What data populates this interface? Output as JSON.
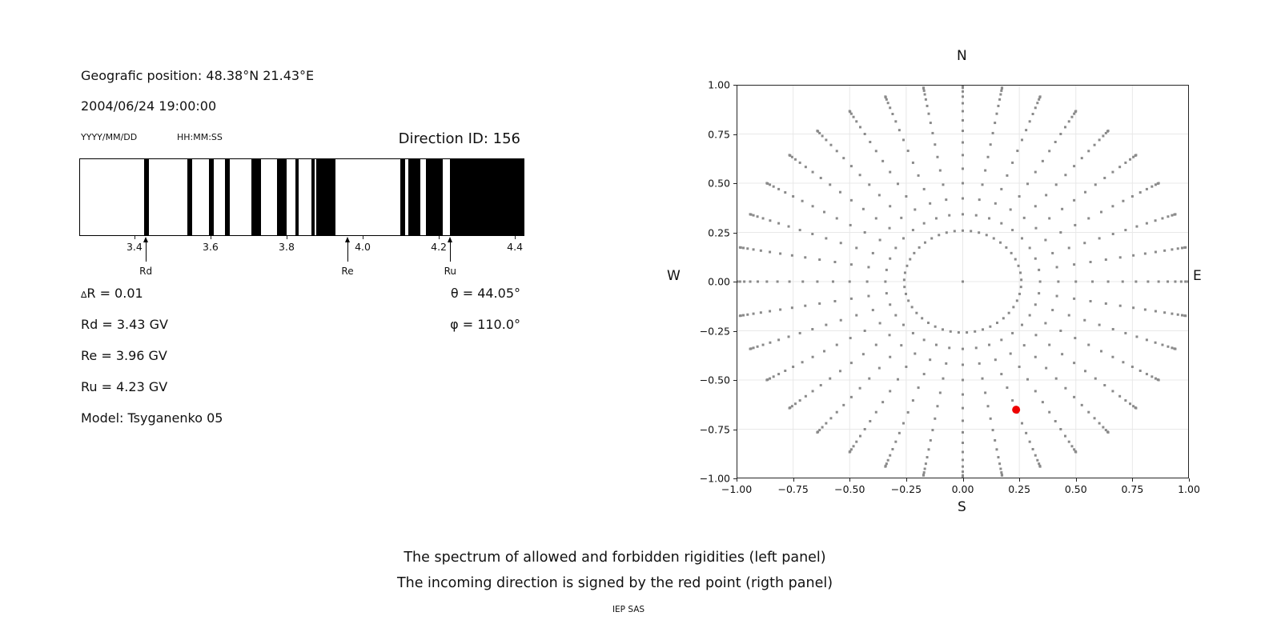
{
  "left_panel": {
    "geo_position": "Geografic position: 48.38°N 21.43°E",
    "datetime": "2004/06/24 19:00:00",
    "date_format_hint": "YYYY/MM/DD",
    "time_format_hint": "HH:MM:SS",
    "direction_id": "Direction ID: 156",
    "params": {
      "delta_r": "∆R = 0.01",
      "rd": "Rd = 3.43 GV",
      "re": "Re = 3.96 GV",
      "ru": "Ru = 4.23 GV",
      "model": "Model: Tsyganenko 05",
      "theta": "θ = 44.05°",
      "phi": "φ = 110.0°"
    }
  },
  "caption": {
    "line1": "The spectrum of allowed and forbidden rigidities (left panel)",
    "line2": "The incoming direction is signed by the red point (rigth panel)",
    "footer": "IEP SAS"
  },
  "chart_data": [
    {
      "type": "barcode-spectrum",
      "description": "Allowed (white) and forbidden (black) rigidity bands in GV",
      "xlim": [
        3.255,
        4.425
      ],
      "xticks": [
        3.4,
        3.6,
        3.8,
        4.0,
        4.2,
        4.4
      ],
      "xtick_labels": [
        "3.4",
        "3.6",
        "3.8",
        "4.0",
        "4.2",
        "4.4"
      ],
      "forbidden_bands_gv": [
        [
          3.425,
          3.437
        ],
        [
          3.537,
          3.551
        ],
        [
          3.595,
          3.608
        ],
        [
          3.638,
          3.651
        ],
        [
          3.707,
          3.733
        ],
        [
          3.774,
          3.8
        ],
        [
          3.823,
          3.832
        ],
        [
          3.865,
          3.873
        ],
        [
          3.877,
          3.929
        ],
        [
          4.1,
          4.113
        ],
        [
          4.121,
          4.153
        ],
        [
          4.167,
          4.212
        ],
        [
          4.231,
          4.425
        ]
      ],
      "markers": [
        {
          "label": "Rd",
          "value_gv": 3.43
        },
        {
          "label": "Re",
          "value_gv": 3.96
        },
        {
          "label": "Ru",
          "value_gv": 4.23
        }
      ],
      "band_color": "#000000"
    },
    {
      "type": "scatter",
      "compass": {
        "top": "N",
        "bottom": "S",
        "left": "W",
        "right": "E"
      },
      "xlim": [
        -1,
        1
      ],
      "ylim": [
        -1,
        1
      ],
      "ticks": [
        -1,
        -0.75,
        -0.5,
        -0.25,
        0,
        0.25,
        0.5,
        0.75,
        1
      ],
      "tick_labels": [
        "−1.00",
        "−0.75",
        "−0.50",
        "−0.25",
        "0.00",
        "0.25",
        "0.50",
        "0.75",
        "1.00"
      ],
      "grid": true,
      "direction_grid": {
        "center_point": [
          0,
          0
        ],
        "inner_ring": {
          "radius": 0.259,
          "points": 45
        },
        "spokes": {
          "count": 36,
          "azimuth_step_deg": 10,
          "zenith_from_deg": 20,
          "zenith_to_deg": 90,
          "zenith_step_deg": 5,
          "radius_rule": "sin(zenith)"
        }
      },
      "red_point": {
        "x": 0.236,
        "y": -0.651
      },
      "colors": {
        "dots": "#8a8a8a",
        "red_point": "#ee0000",
        "grid": "#e8e8e8",
        "spine": "#262626"
      }
    }
  ]
}
